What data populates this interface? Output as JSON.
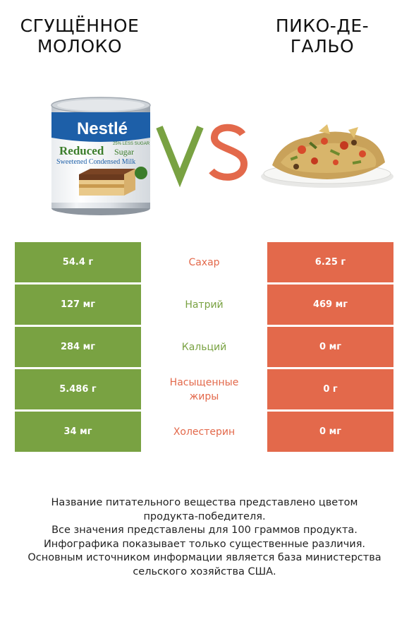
{
  "header": {
    "left_title": "СГУЩЁННОЕ МОЛОКО",
    "right_title": "ПИКО-ДЕ-ГАЛЬО",
    "vs_label": "VS"
  },
  "colors": {
    "left_accent": "#79a242",
    "right_accent": "#e3694b"
  },
  "can_label": {
    "brand": "Nestlé",
    "line1": "Reduced",
    "line1b": "Sugar",
    "line2": "Sweetened Condensed Milk",
    "badge": "25% LESS SUGAR"
  },
  "rows": [
    {
      "left": "54.4 г",
      "nutrient": "Сахар",
      "right": "6.25 г",
      "winner": "right"
    },
    {
      "left": "127 мг",
      "nutrient": "Натрий",
      "right": "469 мг",
      "winner": "left"
    },
    {
      "left": "284 мг",
      "nutrient": "Кальций",
      "right": "0 мг",
      "winner": "left"
    },
    {
      "left": "5.486 г",
      "nutrient": "Насыщенные жиры",
      "right": "0 г",
      "winner": "right"
    },
    {
      "left": "34 мг",
      "nutrient": "Холестерин",
      "right": "0 мг",
      "winner": "right"
    }
  ],
  "footnote": [
    "Название питательного вещества представлено цветом",
    "продукта-победителя.",
    "Все значения представлены для 100 граммов продукта.",
    "Инфографика показывает только существенные различия.",
    "Основным источником информации является база министерства",
    "сельского хозяйства США."
  ]
}
